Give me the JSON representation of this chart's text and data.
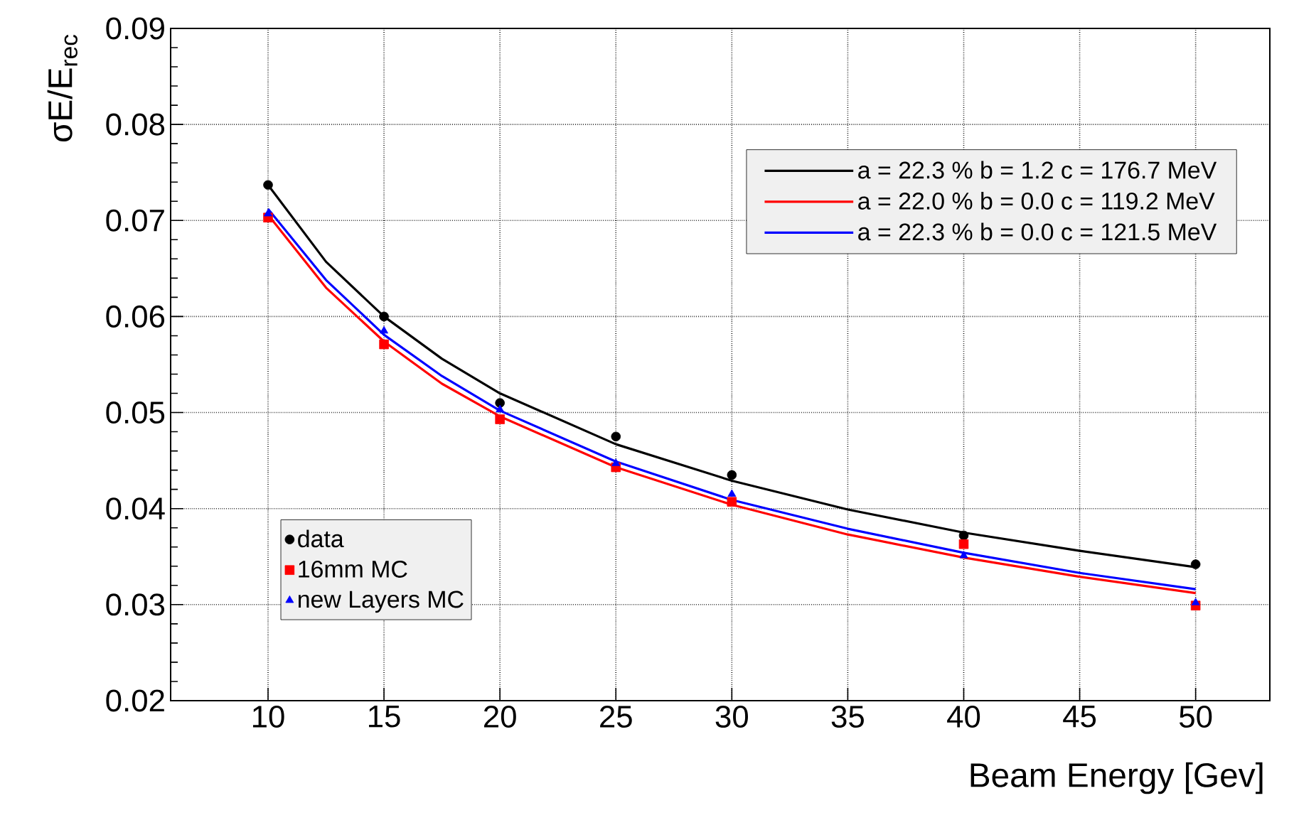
{
  "chart_data": {
    "type": "scatter",
    "xlabel": "Beam Energy [Gev]",
    "ylabel": "σE/E$_{rec}$",
    "x": [
      10,
      15,
      20,
      25,
      30,
      40,
      50
    ],
    "xlim": [
      5.8,
      53.2
    ],
    "ylim": [
      0.02,
      0.09
    ],
    "xticks": [
      10,
      15,
      20,
      25,
      30,
      35,
      40,
      45,
      50
    ],
    "yticks": [
      0.02,
      0.03,
      0.04,
      0.05,
      0.06,
      0.07,
      0.08,
      0.09
    ],
    "grid": true,
    "legend": "bottom left",
    "series": [
      {
        "name": "data",
        "color": "#000000",
        "marker": "circle",
        "values": [
          0.0737,
          0.06,
          0.051,
          0.0475,
          0.0435,
          0.0372,
          0.0342
        ]
      },
      {
        "name": "16mm MC",
        "color": "#ff0000",
        "marker": "square",
        "values": [
          0.0703,
          0.0571,
          0.0493,
          0.0443,
          0.0407,
          0.0363,
          0.0299
        ]
      },
      {
        "name": "new Layers MC",
        "color": "#0000ff",
        "marker": "triangle",
        "values": [
          0.0707,
          0.0585,
          0.0503,
          0.0447,
          0.0415,
          0.0351,
          0.0302
        ]
      },
      {
        "type": "line",
        "name": "a = 22.3 %  b = 1.2  c = 176.7 MeV",
        "color": "#000000",
        "x": [
          10,
          12.5,
          15,
          17.5,
          20,
          25,
          30,
          35,
          40,
          45,
          50
        ],
        "values": [
          0.0737,
          0.0657,
          0.06,
          0.0556,
          0.052,
          0.0467,
          0.0429,
          0.0399,
          0.0375,
          0.0356,
          0.0339
        ]
      },
      {
        "type": "line",
        "name": "a = 22.0 %  b = 0.0  c = 119.2 MeV",
        "color": "#ff0000",
        "x": [
          10,
          12.5,
          15,
          17.5,
          20,
          25,
          30,
          35,
          40,
          45,
          50
        ],
        "values": [
          0.0706,
          0.063,
          0.0574,
          0.053,
          0.0496,
          0.0443,
          0.0404,
          0.0373,
          0.0349,
          0.0329,
          0.0312
        ]
      },
      {
        "type": "line",
        "name": "a = 22.3 %  b = 0.0  c = 121.5 MeV",
        "color": "#0000ff",
        "x": [
          10,
          12.5,
          15,
          17.5,
          20,
          25,
          30,
          35,
          40,
          45,
          50
        ],
        "values": [
          0.0712,
          0.0638,
          0.0581,
          0.0538,
          0.0502,
          0.0449,
          0.0409,
          0.0379,
          0.0354,
          0.0333,
          0.0316
        ]
      }
    ]
  }
}
